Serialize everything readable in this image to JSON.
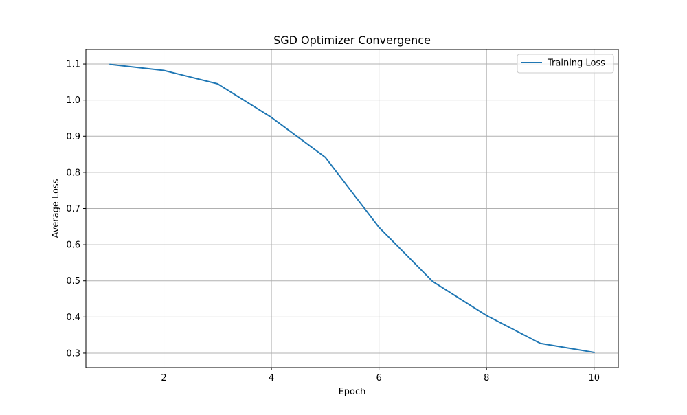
{
  "chart_data": {
    "type": "line",
    "title": "SGD Optimizer Convergence",
    "xlabel": "Epoch",
    "ylabel": "Average Loss",
    "xlim": [
      0.55,
      10.45
    ],
    "ylim": [
      0.26,
      1.14
    ],
    "xticks": [
      2,
      4,
      6,
      8,
      10
    ],
    "yticks": [
      0.3,
      0.4,
      0.5,
      0.6,
      0.7,
      0.8,
      0.9,
      1.0,
      1.1
    ],
    "grid": true,
    "legend_position": "top-right",
    "series": [
      {
        "name": "Training Loss",
        "color": "#1f77b4",
        "x": [
          1,
          2,
          3,
          4,
          5,
          6,
          7,
          8,
          9,
          10
        ],
        "y": [
          1.099,
          1.082,
          1.045,
          0.952,
          0.842,
          0.648,
          0.498,
          0.404,
          0.327,
          0.302
        ]
      }
    ]
  }
}
